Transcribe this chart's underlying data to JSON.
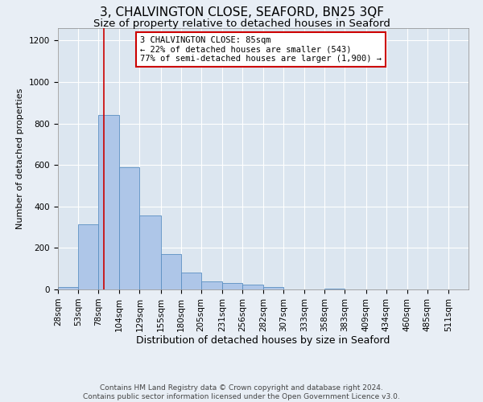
{
  "title": "3, CHALVINGTON CLOSE, SEAFORD, BN25 3QF",
  "subtitle": "Size of property relative to detached houses in Seaford",
  "xlabel": "Distribution of detached houses by size in Seaford",
  "ylabel": "Number of detached properties",
  "bin_edges": [
    28,
    53,
    78,
    104,
    129,
    155,
    180,
    205,
    231,
    256,
    282,
    307,
    333,
    358,
    383,
    409,
    434,
    460,
    485,
    511,
    536
  ],
  "bar_heights": [
    10,
    313,
    843,
    590,
    358,
    170,
    80,
    37,
    30,
    25,
    10,
    0,
    0,
    5,
    0,
    0,
    0,
    0,
    0,
    0
  ],
  "bar_color": "#aec6e8",
  "bar_edge_color": "#5a8fc2",
  "property_size": 85,
  "property_line_color": "#cc0000",
  "annotation_text": "3 CHALVINGTON CLOSE: 85sqm\n← 22% of detached houses are smaller (543)\n77% of semi-detached houses are larger (1,900) →",
  "annotation_box_color": "#ffffff",
  "annotation_box_edge_color": "#cc0000",
  "ylim": [
    0,
    1260
  ],
  "yticks": [
    0,
    200,
    400,
    600,
    800,
    1000,
    1200
  ],
  "footer_text": "Contains HM Land Registry data © Crown copyright and database right 2024.\nContains public sector information licensed under the Open Government Licence v3.0.",
  "background_color": "#e8eef5",
  "plot_background_color": "#dce6f0",
  "title_fontsize": 11,
  "subtitle_fontsize": 9.5,
  "xlabel_fontsize": 9,
  "ylabel_fontsize": 8,
  "tick_fontsize": 7.5,
  "annotation_fontsize": 7.5,
  "footer_fontsize": 6.5
}
